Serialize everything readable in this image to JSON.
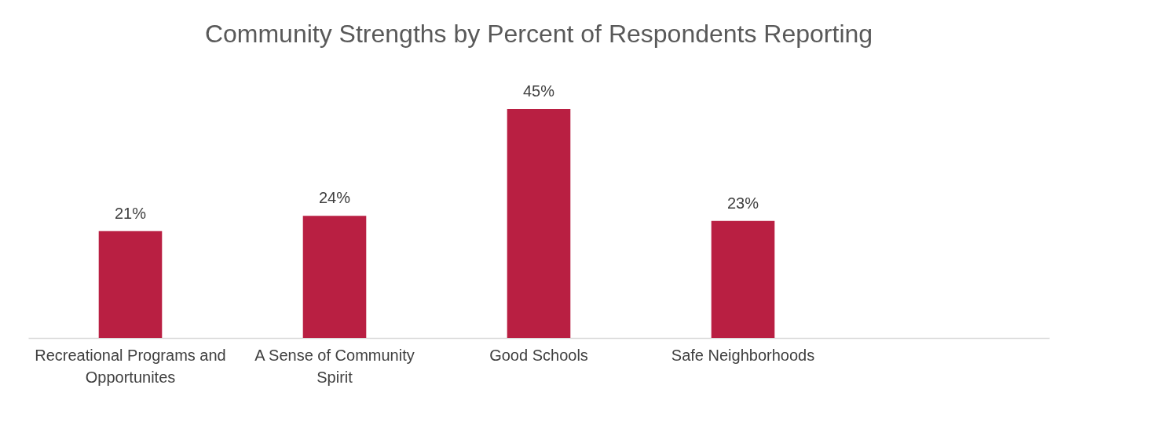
{
  "chart_data": {
    "type": "bar",
    "title": "Community Strengths by Percent of Respondents Reporting",
    "categories": [
      "Recreational Programs and Opportunites",
      "A Sense of Community Spirit",
      "Good Schools",
      "Safe Neighborhoods",
      null
    ],
    "values": [
      21,
      24,
      45,
      23,
      null
    ],
    "value_labels": [
      "21%",
      "24%",
      "45%",
      "23%",
      null
    ],
    "color": "#b91f42",
    "grid": false
  }
}
